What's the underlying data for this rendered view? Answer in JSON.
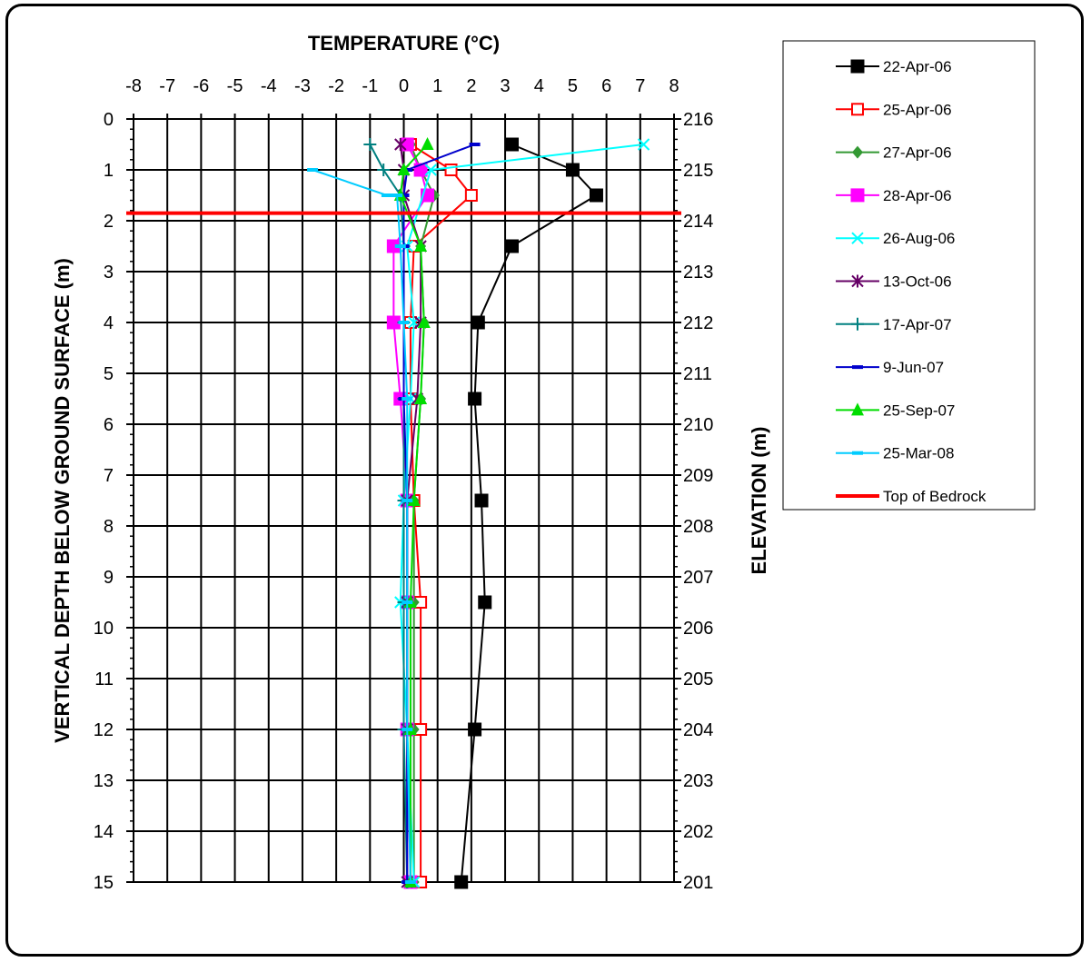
{
  "chart_data": {
    "type": "line",
    "title": "",
    "xlabel": "TEMPERATURE (°C)",
    "ylabel": "VERTICAL DEPTH BELOW GROUND SURFACE (m)",
    "y2label": "ELEVATION (m)",
    "xlim": [
      -8,
      8
    ],
    "ylim": [
      0,
      15
    ],
    "y2lim": [
      216,
      201
    ],
    "x_ticks": [
      -8,
      -7,
      -6,
      -5,
      -4,
      -3,
      -2,
      -1,
      0,
      1,
      2,
      3,
      4,
      5,
      6,
      7,
      8
    ],
    "y_ticks": [
      0,
      1,
      2,
      3,
      4,
      5,
      6,
      7,
      8,
      9,
      10,
      11,
      12,
      13,
      14,
      15
    ],
    "y2_ticks": [
      216,
      215,
      214,
      213,
      212,
      211,
      210,
      209,
      208,
      207,
      206,
      205,
      204,
      203,
      202,
      201
    ],
    "grid": true,
    "legend_position": "right",
    "series": [
      {
        "name": "22-Apr-06",
        "color": "#000000",
        "marker": "square-filled",
        "points": [
          [
            3.2,
            0.5
          ],
          [
            5.0,
            1.0
          ],
          [
            5.7,
            1.5
          ],
          [
            3.2,
            2.5
          ],
          [
            2.2,
            4.0
          ],
          [
            2.1,
            5.5
          ],
          [
            2.3,
            7.5
          ],
          [
            2.4,
            9.5
          ],
          [
            2.1,
            12.0
          ],
          [
            1.7,
            15.0
          ]
        ]
      },
      {
        "name": "25-Apr-06",
        "color": "#ff0000",
        "marker": "square-open",
        "points": [
          [
            0.2,
            0.5
          ],
          [
            1.4,
            1.0
          ],
          [
            2.0,
            1.5
          ],
          [
            0.3,
            2.5
          ],
          [
            0.2,
            4.0
          ],
          [
            0.2,
            5.5
          ],
          [
            0.3,
            7.5
          ],
          [
            0.5,
            9.5
          ],
          [
            0.5,
            12.0
          ],
          [
            0.5,
            15.0
          ]
        ]
      },
      {
        "name": "27-Apr-06",
        "color": "#339933",
        "marker": "diamond",
        "points": [
          [
            0.2,
            0.5
          ],
          [
            0.5,
            1.0
          ],
          [
            0.9,
            1.5
          ],
          [
            0.5,
            2.5
          ],
          [
            0.6,
            4.0
          ],
          [
            0.5,
            5.5
          ],
          [
            0.3,
            7.5
          ],
          [
            0.3,
            9.5
          ],
          [
            0.3,
            12.0
          ],
          [
            0.3,
            15.0
          ]
        ]
      },
      {
        "name": "28-Apr-06",
        "color": "#ff00ff",
        "marker": "square-filled",
        "points": [
          [
            0.1,
            0.5
          ],
          [
            0.5,
            1.0
          ],
          [
            0.7,
            1.5
          ],
          [
            -0.3,
            2.5
          ],
          [
            -0.3,
            4.0
          ],
          [
            -0.1,
            5.5
          ],
          [
            0.1,
            7.5
          ],
          [
            0.1,
            9.5
          ],
          [
            0.1,
            12.0
          ],
          [
            0.2,
            15.0
          ]
        ]
      },
      {
        "name": "26-Aug-06",
        "color": "#00ffff",
        "marker": "x",
        "points": [
          [
            7.1,
            0.5
          ],
          [
            0.8,
            1.0
          ],
          [
            0.1,
            2.5
          ],
          [
            0.3,
            4.0
          ],
          [
            0.2,
            5.5
          ],
          [
            0.0,
            7.5
          ],
          [
            -0.1,
            9.5
          ],
          [
            0.1,
            12.0
          ],
          [
            0.3,
            15.0
          ]
        ]
      },
      {
        "name": "13-Oct-06",
        "color": "#660066",
        "marker": "asterisk",
        "points": [
          [
            -0.1,
            0.5
          ],
          [
            0.0,
            1.0
          ],
          [
            0.0,
            1.5
          ],
          [
            0.5,
            2.5
          ],
          [
            0.5,
            4.0
          ],
          [
            0.4,
            5.5
          ],
          [
            0.1,
            7.5
          ],
          [
            0.1,
            9.5
          ],
          [
            0.1,
            12.0
          ],
          [
            0.1,
            15.0
          ]
        ]
      },
      {
        "name": "17-Apr-07",
        "color": "#008080",
        "marker": "plus",
        "points": [
          [
            -1.0,
            0.5
          ],
          [
            -0.6,
            1.0
          ],
          [
            -0.1,
            1.5
          ],
          [
            0.0,
            2.5
          ],
          [
            0.0,
            4.0
          ],
          [
            0.0,
            5.5
          ],
          [
            0.0,
            7.5
          ],
          [
            0.0,
            9.5
          ],
          [
            0.0,
            12.0
          ],
          [
            0.1,
            15.0
          ]
        ]
      },
      {
        "name": "9-Jun-07",
        "color": "#0000cc",
        "marker": "dash",
        "points": [
          [
            2.1,
            0.5
          ],
          [
            0.1,
            1.0
          ],
          [
            0.0,
            1.5
          ],
          [
            0.0,
            2.5
          ],
          [
            0.0,
            4.0
          ],
          [
            0.0,
            5.5
          ],
          [
            0.1,
            7.5
          ],
          [
            0.1,
            9.5
          ],
          [
            0.1,
            12.0
          ],
          [
            0.1,
            15.0
          ]
        ]
      },
      {
        "name": "25-Sep-07",
        "color": "#00dd00",
        "marker": "triangle",
        "points": [
          [
            0.7,
            0.5
          ],
          [
            0.0,
            1.0
          ],
          [
            -0.1,
            1.5
          ],
          [
            0.5,
            2.5
          ],
          [
            0.6,
            4.0
          ],
          [
            0.5,
            5.5
          ],
          [
            0.3,
            7.5
          ],
          [
            0.2,
            9.5
          ],
          [
            0.2,
            12.0
          ],
          [
            0.2,
            15.0
          ]
        ]
      },
      {
        "name": "25-Mar-08",
        "color": "#00ccff",
        "marker": "dash",
        "points": [
          [
            -2.7,
            1.0
          ],
          [
            -0.5,
            1.5
          ],
          [
            -0.2,
            1.5
          ],
          [
            -0.1,
            2.5
          ],
          [
            0.0,
            4.0
          ],
          [
            0.1,
            5.5
          ],
          [
            0.1,
            7.5
          ],
          [
            0.1,
            9.5
          ],
          [
            0.1,
            12.0
          ],
          [
            0.2,
            15.0
          ]
        ]
      }
    ],
    "reference_lines": [
      {
        "name": "Top of Bedrock",
        "color": "#ff0000",
        "y": 1.85
      }
    ]
  }
}
